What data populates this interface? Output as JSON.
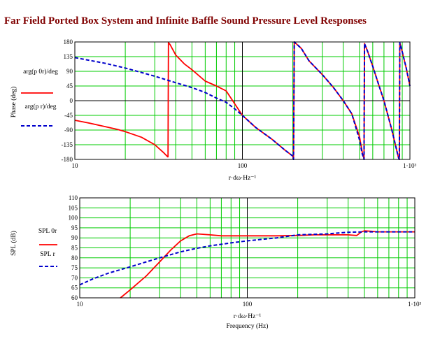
{
  "title": "Far Field Ported Box System and Infinite Baffle Sound Pressure Level Responses",
  "colors": {
    "grid": "#00cc00",
    "ported": "#ff0000",
    "baffle": "#0000cc",
    "frame": "#000000",
    "title": "#800000"
  },
  "chart_data": [
    {
      "type": "line",
      "xscale": "log",
      "xlim": [
        10,
        1000
      ],
      "ylim": [
        -180,
        180
      ],
      "xlabel": "r·dω·Hz⁻¹",
      "ylabel": "Phase (deg)",
      "xtick_labels": [
        "10",
        "100",
        "1·10³"
      ],
      "ytick_labels": [
        "180",
        "135",
        "90",
        "45",
        "0",
        "-45",
        "-90",
        "-135",
        "-180"
      ],
      "series": [
        {
          "name": "arg(p 0r)/deg",
          "style": "solid",
          "points": [
            [
              10,
              -60
            ],
            [
              12,
              -68
            ],
            [
              15,
              -79
            ],
            [
              18,
              -88
            ],
            [
              20,
              -95
            ],
            [
              25,
              -112
            ],
            [
              30,
              -135
            ],
            [
              34,
              -160
            ],
            [
              35.8,
              -172
            ],
            [
              36,
              -172
            ],
            [
              36.2,
              178
            ],
            [
              37,
              172
            ],
            [
              40,
              140
            ],
            [
              45,
              113
            ],
            [
              50,
              95
            ],
            [
              60,
              60
            ],
            [
              70,
              45
            ],
            [
              80,
              30
            ],
            [
              100,
              -45
            ],
            [
              120,
              -82
            ],
            [
              150,
              -118
            ],
            [
              180,
              -152
            ],
            [
              200,
              -170
            ],
            [
              202,
              -180
            ],
            [
              204,
              180
            ],
            [
              225,
              160
            ],
            [
              250,
              122
            ],
            [
              300,
              80
            ],
            [
              350,
              40
            ],
            [
              400,
              0
            ],
            [
              450,
              -40
            ],
            [
              500,
              -110
            ],
            [
              520,
              -160
            ],
            [
              530,
              -175
            ],
            [
              532,
              -180
            ],
            [
              536,
              175
            ],
            [
              560,
              150
            ],
            [
              600,
              105
            ],
            [
              650,
              50
            ],
            [
              700,
              0
            ],
            [
              780,
              -90
            ],
            [
              850,
              -170
            ],
            [
              860,
              -178
            ],
            [
              865,
              -180
            ],
            [
              870,
              178
            ],
            [
              900,
              150
            ],
            [
              950,
              100
            ],
            [
              1000,
              45
            ]
          ]
        },
        {
          "name": "arg(p r)/deg",
          "style": "dashed",
          "points": [
            [
              10,
              132
            ],
            [
              15,
              115
            ],
            [
              20,
              100
            ],
            [
              30,
              75
            ],
            [
              40,
              55
            ],
            [
              50,
              40
            ],
            [
              60,
              25
            ],
            [
              70,
              8
            ],
            [
              80,
              -5
            ],
            [
              90,
              -25
            ],
            [
              100,
              -45
            ],
            [
              120,
              -82
            ],
            [
              150,
              -118
            ],
            [
              180,
              -152
            ],
            [
              200,
              -170
            ],
            [
              202,
              -180
            ],
            [
              204,
              180
            ],
            [
              225,
              160
            ],
            [
              250,
              122
            ],
            [
              300,
              80
            ],
            [
              350,
              40
            ],
            [
              400,
              0
            ],
            [
              450,
              -40
            ],
            [
              500,
              -120
            ],
            [
              520,
              -165
            ],
            [
              530,
              -175
            ],
            [
              532,
              -180
            ],
            [
              536,
              175
            ],
            [
              560,
              150
            ],
            [
              600,
              105
            ],
            [
              650,
              50
            ],
            [
              700,
              0
            ],
            [
              780,
              -90
            ],
            [
              850,
              -170
            ],
            [
              860,
              -178
            ],
            [
              865,
              -180
            ],
            [
              870,
              178
            ],
            [
              900,
              150
            ],
            [
              950,
              100
            ],
            [
              1000,
              45
            ]
          ]
        }
      ]
    },
    {
      "type": "line",
      "xscale": "log",
      "xlim": [
        10,
        1000
      ],
      "ylim": [
        60,
        110
      ],
      "xlabel": "r·dω·Hz⁻¹",
      "xlabel2": "Frequency (Hz)",
      "ylabel": "SPL (dB)",
      "xtick_labels": [
        "10",
        "100",
        "1·10³"
      ],
      "ytick_labels": [
        "110",
        "105",
        "100",
        "95",
        "90",
        "85",
        "80",
        "75",
        "70",
        "65",
        "60"
      ],
      "series": [
        {
          "name": "SPL 0r",
          "style": "solid",
          "points": [
            [
              17.5,
              60
            ],
            [
              20,
              64
            ],
            [
              25,
              71
            ],
            [
              30,
              78
            ],
            [
              35,
              84
            ],
            [
              40,
              88.5
            ],
            [
              45,
              91
            ],
            [
              50,
              92
            ],
            [
              60,
              91.5
            ],
            [
              70,
              91
            ],
            [
              100,
              91
            ],
            [
              150,
              91
            ],
            [
              200,
              91.2
            ],
            [
              250,
              91.5
            ],
            [
              300,
              91.5
            ],
            [
              400,
              91.5
            ],
            [
              450,
              91.2
            ],
            [
              480,
              93
            ],
            [
              500,
              93.5
            ],
            [
              550,
              93.3
            ],
            [
              600,
              93
            ],
            [
              800,
              93
            ],
            [
              1000,
              93
            ]
          ]
        },
        {
          "name": "SPL r",
          "style": "dashed",
          "points": [
            [
              10,
              66.5
            ],
            [
              12,
              69.5
            ],
            [
              15,
              72.5
            ],
            [
              20,
              75.5
            ],
            [
              25,
              78
            ],
            [
              30,
              80
            ],
            [
              40,
              83
            ],
            [
              50,
              84.8
            ],
            [
              60,
              86
            ],
            [
              70,
              86.8
            ],
            [
              80,
              87.5
            ],
            [
              100,
              88.5
            ],
            [
              150,
              90
            ],
            [
              200,
              91.5
            ],
            [
              300,
              92
            ],
            [
              400,
              92.8
            ],
            [
              500,
              93
            ],
            [
              600,
              93
            ],
            [
              800,
              93
            ],
            [
              1000,
              93
            ]
          ]
        }
      ]
    }
  ]
}
